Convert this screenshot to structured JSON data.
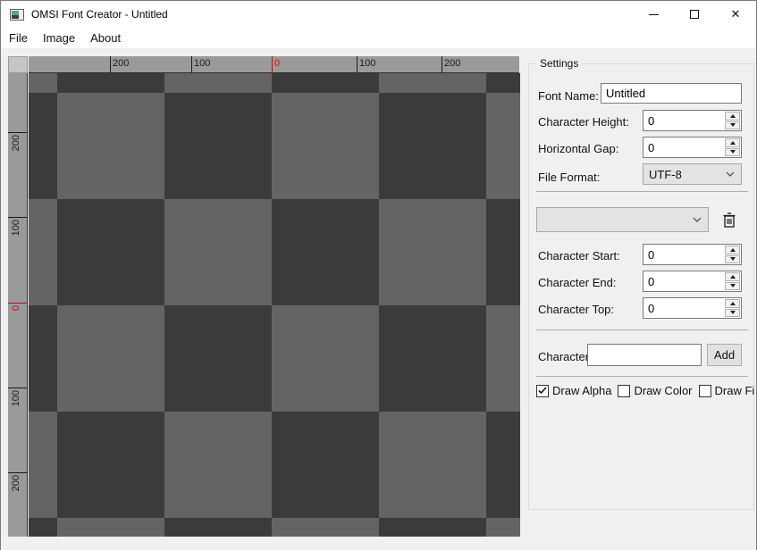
{
  "window": {
    "title": "OMSI Font Creator - Untitled",
    "controls": {
      "minimize": "minimize",
      "maximize": "maximize",
      "close": "close"
    }
  },
  "menu": {
    "items": [
      "File",
      "Image",
      "About"
    ]
  },
  "rulers": {
    "top": {
      "ticks": [
        {
          "label": "200",
          "pos": 91
        },
        {
          "label": "100",
          "pos": 182
        },
        {
          "label": "0",
          "pos": 272,
          "accent": true
        },
        {
          "label": "100",
          "pos": 367
        },
        {
          "label": "200",
          "pos": 462
        }
      ]
    },
    "left": {
      "ticks": [
        {
          "label": "200",
          "pos": 66
        },
        {
          "label": "100",
          "pos": 161
        },
        {
          "label": "0",
          "pos": 257,
          "accent": true
        },
        {
          "label": "100",
          "pos": 352
        },
        {
          "label": "200",
          "pos": 447
        }
      ]
    }
  },
  "canvas": {
    "colors": {
      "dark": "#3b3b3b",
      "light": "#646464"
    },
    "cell_size": 120
  },
  "settings": {
    "title": "Settings",
    "font_name": {
      "label": "Font Name:",
      "value": "Untitled"
    },
    "spin_fields": {
      "character_height": {
        "label": "Character Height:",
        "value": "0"
      },
      "horizontal_gap": {
        "label": "Horizontal Gap:",
        "value": "0"
      },
      "character_start": {
        "label": "Character Start:",
        "value": "0"
      },
      "character_end": {
        "label": "Character End:",
        "value": "0"
      },
      "character_top": {
        "label": "Character Top:",
        "value": "0"
      }
    },
    "file_format": {
      "label": "File Format:",
      "value": "UTF-8"
    },
    "preset_combo": {
      "value": ""
    },
    "character": {
      "label": "Character:",
      "value": "",
      "add_label": "Add"
    },
    "checkboxes": [
      {
        "label": "Draw Alpha",
        "checked": true
      },
      {
        "label": "Draw Color",
        "checked": false
      },
      {
        "label": "Draw Fina",
        "checked": false
      }
    ]
  }
}
